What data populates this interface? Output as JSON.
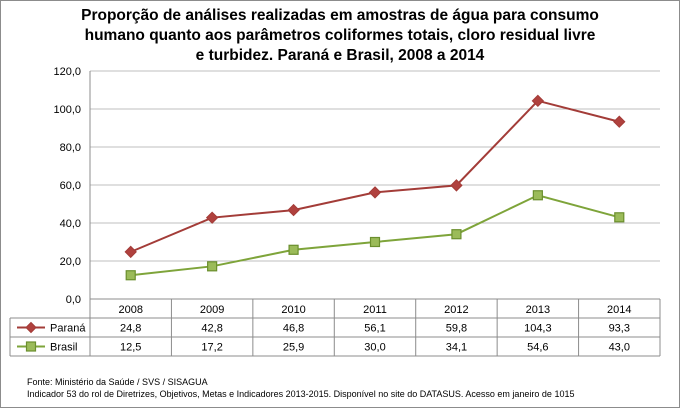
{
  "chart_data": {
    "type": "line",
    "title": "Proporção de análises realizadas em amostras de água para consumo humano quanto aos parâmetros coliformes totais, cloro residual livre e turbidez. Paraná e Brasil, 2008 a 2014",
    "title_lines": [
      "Proporção de análises realizadas em amostras de água para consumo",
      "humano quanto aos parâmetros coliformes totais, cloro residual livre",
      "e turbidez. Paraná e Brasil, 2008 a 2014"
    ],
    "categories": [
      "2008",
      "2009",
      "2010",
      "2011",
      "2012",
      "2013",
      "2014"
    ],
    "series": [
      {
        "name": "Paraná",
        "values": [
          24.8,
          42.8,
          46.8,
          56.1,
          59.8,
          104.3,
          93.3
        ],
        "labels": [
          "24,8",
          "42,8",
          "46,8",
          "56,1",
          "59,8",
          "104,3",
          "93,3"
        ],
        "color": "#a33c38",
        "marker": "diamond"
      },
      {
        "name": "Brasil",
        "values": [
          12.5,
          17.2,
          25.9,
          30.0,
          34.1,
          54.6,
          43.0
        ],
        "labels": [
          "12,5",
          "17,2",
          "25,9",
          "30,0",
          "34,1",
          "54,6",
          "43,0"
        ],
        "color": "#7ea43a",
        "marker": "square"
      }
    ],
    "ylim": [
      0,
      120
    ],
    "yticks": [
      0,
      20,
      40,
      60,
      80,
      100,
      120
    ],
    "ytick_labels": [
      "0,0",
      "20,0",
      "40,0",
      "60,0",
      "80,0",
      "100,0",
      "120,0"
    ],
    "grid": true,
    "legend": "data-table",
    "gridline_color": "#bfbfbf",
    "marker_fill": {
      "Paraná": "#b0413e",
      "Brasil": "#9bbb59"
    }
  },
  "source": {
    "line1": "Fonte: Ministério da Saúde / SVS / SISAGUA",
    "line2": "Indicador 53 do rol de Diretrizes, Objetivos, Metas e Indicadores 2013-2015. Disponível no site do DATASUS. Acesso em janeiro de 1015"
  }
}
